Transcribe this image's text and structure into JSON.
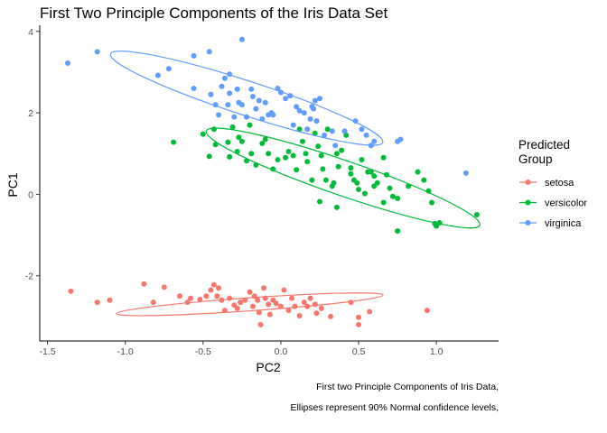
{
  "chart_data": {
    "type": "scatter",
    "title": "First Two Principle Components of the Iris Data Set",
    "xlabel": "PC2",
    "ylabel": "PC1",
    "xlim": [
      -1.55,
      1.4
    ],
    "ylim": [
      -3.6,
      4.15
    ],
    "x_ticks": [
      -1.5,
      -1.0,
      -0.5,
      0.0,
      0.5,
      1.0
    ],
    "x_tick_labels": [
      "-1.5",
      "-1.0",
      "-0.5",
      "0.0",
      "0.5",
      "1.0"
    ],
    "y_ticks": [
      -2,
      0,
      2,
      4
    ],
    "y_tick_labels": [
      "-2",
      "0",
      "2",
      "4"
    ],
    "grid": false,
    "legend": {
      "title": "Predicted\nGroup",
      "position": "right"
    },
    "captions": [
      "First two Principle Components of Iris Data,",
      "Ellipses represent 90% Normal confidence levels,"
    ],
    "series": [
      {
        "name": "setosa",
        "color": "#F8766D",
        "points": [
          [
            -1.35,
            -2.38
          ],
          [
            -1.18,
            -2.65
          ],
          [
            -1.1,
            -2.6
          ],
          [
            -0.88,
            -2.2
          ],
          [
            -0.82,
            -2.65
          ],
          [
            -0.75,
            -2.28
          ],
          [
            -0.65,
            -2.5
          ],
          [
            -0.6,
            -2.65
          ],
          [
            -0.58,
            -2.55
          ],
          [
            -0.52,
            -2.58
          ],
          [
            -0.48,
            -2.5
          ],
          [
            -0.45,
            -2.35
          ],
          [
            -0.43,
            -2.22
          ],
          [
            -0.41,
            -2.5
          ],
          [
            -0.4,
            -2.3
          ],
          [
            -0.38,
            -2.6
          ],
          [
            -0.36,
            -2.85
          ],
          [
            -0.33,
            -2.55
          ],
          [
            -0.3,
            -2.72
          ],
          [
            -0.28,
            -2.8
          ],
          [
            -0.26,
            -2.65
          ],
          [
            -0.23,
            -2.6
          ],
          [
            -0.2,
            -2.4
          ],
          [
            -0.18,
            -2.75
          ],
          [
            -0.17,
            -2.5
          ],
          [
            -0.15,
            -2.6
          ],
          [
            -0.14,
            -2.9
          ],
          [
            -0.13,
            -3.2
          ],
          [
            -0.11,
            -2.3
          ],
          [
            -0.1,
            -2.55
          ],
          [
            -0.08,
            -2.7
          ],
          [
            -0.07,
            -2.95
          ],
          [
            -0.05,
            -2.6
          ],
          [
            -0.03,
            -2.68
          ],
          [
            0.0,
            -2.75
          ],
          [
            0.02,
            -2.35
          ],
          [
            0.05,
            -2.85
          ],
          [
            0.07,
            -2.55
          ],
          [
            0.09,
            -2.75
          ],
          [
            0.12,
            -2.98
          ],
          [
            0.15,
            -2.65
          ],
          [
            0.17,
            -2.75
          ],
          [
            0.19,
            -2.55
          ],
          [
            0.22,
            -2.7
          ],
          [
            0.23,
            -2.92
          ],
          [
            0.26,
            -2.8
          ],
          [
            0.32,
            -3.0
          ],
          [
            0.45,
            -2.65
          ],
          [
            0.5,
            -3.2
          ],
          [
            0.5,
            -3.02
          ],
          [
            0.57,
            -2.88
          ],
          [
            0.94,
            -2.85
          ]
        ],
        "ellipse": {
          "center": [
            -0.2,
            -2.7
          ],
          "angle_deg": -4,
          "rx": 0.86,
          "ry": 0.16
        }
      },
      {
        "name": "versicolor",
        "color": "#00BA38",
        "points": [
          [
            -0.69,
            1.28
          ],
          [
            -0.5,
            1.48
          ],
          [
            -0.46,
            0.93
          ],
          [
            -0.43,
            1.6
          ],
          [
            -0.42,
            1.22
          ],
          [
            -0.34,
            1.28
          ],
          [
            -0.33,
            0.92
          ],
          [
            -0.31,
            1.65
          ],
          [
            -0.28,
            1.05
          ],
          [
            -0.27,
            1.4
          ],
          [
            -0.25,
            1.3
          ],
          [
            -0.22,
            0.82
          ],
          [
            -0.2,
            1.7
          ],
          [
            -0.19,
            1.0
          ],
          [
            -0.16,
            0.72
          ],
          [
            -0.12,
            1.25
          ],
          [
            -0.08,
            1.0
          ],
          [
            -0.05,
            0.62
          ],
          [
            -0.02,
            0.85
          ],
          [
            0.03,
            0.9
          ],
          [
            0.05,
            1.05
          ],
          [
            0.1,
            0.6
          ],
          [
            0.12,
            1.6
          ],
          [
            0.14,
            1.3
          ],
          [
            0.17,
            0.8
          ],
          [
            0.2,
            0.35
          ],
          [
            0.22,
            1.5
          ],
          [
            0.24,
            1.18
          ],
          [
            0.26,
            0.95
          ],
          [
            0.27,
            0.62
          ],
          [
            0.29,
            0.35
          ],
          [
            0.3,
            1.6
          ],
          [
            0.33,
            0.2
          ],
          [
            0.34,
            0.28
          ],
          [
            0.36,
            1.0
          ],
          [
            0.37,
            0.68
          ],
          [
            0.39,
            1.08
          ],
          [
            0.42,
            1.45
          ],
          [
            0.45,
            0.65
          ],
          [
            0.47,
            0.35
          ],
          [
            0.49,
            0.28
          ],
          [
            0.5,
            0.12
          ],
          [
            0.52,
            0.85
          ],
          [
            0.54,
            0.02
          ],
          [
            0.56,
            0.55
          ],
          [
            0.58,
            0.55
          ],
          [
            0.6,
            0.45
          ],
          [
            0.62,
            0.28
          ],
          [
            0.66,
            0.9
          ],
          [
            0.68,
            0.48
          ],
          [
            0.7,
            0.15
          ],
          [
            0.72,
            -0.05
          ],
          [
            0.75,
            -0.1
          ],
          [
            0.82,
            0.2
          ],
          [
            0.88,
            0.55
          ],
          [
            0.92,
            0.35
          ],
          [
            0.95,
            0.08
          ],
          [
            0.97,
            -0.2
          ],
          [
            0.99,
            -0.72
          ],
          [
            1.0,
            -0.78
          ],
          [
            1.02,
            -0.7
          ],
          [
            1.26,
            -0.5
          ],
          [
            0.75,
            -0.9
          ],
          [
            0.66,
            -0.2
          ],
          [
            0.6,
            0.2
          ],
          [
            0.25,
            -0.18
          ],
          [
            0.36,
            -0.32
          ],
          [
            0.45,
            0.5
          ],
          [
            0.08,
            0.95
          ],
          [
            -0.1,
            1.35
          ],
          [
            0.16,
            1.0
          ]
        ],
        "ellipse": {
          "center": [
            0.4,
            0.4
          ],
          "angle_deg": 19,
          "rx": 0.93,
          "ry": 0.43
        }
      },
      {
        "name": "virginica",
        "color": "#619CFF",
        "points": [
          [
            -1.37,
            3.22
          ],
          [
            -1.18,
            3.5
          ],
          [
            -0.79,
            2.92
          ],
          [
            -0.72,
            3.08
          ],
          [
            -0.56,
            3.4
          ],
          [
            -0.56,
            2.6
          ],
          [
            -0.46,
            3.5
          ],
          [
            -0.45,
            2.45
          ],
          [
            -0.42,
            2.2
          ],
          [
            -0.4,
            1.95
          ],
          [
            -0.38,
            2.65
          ],
          [
            -0.36,
            2.85
          ],
          [
            -0.34,
            2.2
          ],
          [
            -0.33,
            2.48
          ],
          [
            -0.33,
            2.95
          ],
          [
            -0.3,
            1.9
          ],
          [
            -0.28,
            2.58
          ],
          [
            -0.27,
            2.25
          ],
          [
            -0.25,
            2.2
          ],
          [
            -0.25,
            3.8
          ],
          [
            -0.22,
            1.9
          ],
          [
            -0.19,
            2.58
          ],
          [
            -0.18,
            2.4
          ],
          [
            -0.16,
            2.1
          ],
          [
            -0.14,
            2.3
          ],
          [
            -0.12,
            1.85
          ],
          [
            -0.1,
            2.25
          ],
          [
            -0.08,
            1.95
          ],
          [
            -0.06,
            2.0
          ],
          [
            -0.05,
            1.95
          ],
          [
            -0.02,
            2.6
          ],
          [
            0.0,
            2.5
          ],
          [
            0.03,
            2.35
          ],
          [
            0.06,
            2.42
          ],
          [
            0.08,
            1.7
          ],
          [
            0.1,
            2.15
          ],
          [
            0.12,
            2.05
          ],
          [
            0.15,
            2.0
          ],
          [
            0.17,
            1.6
          ],
          [
            0.19,
            1.85
          ],
          [
            0.2,
            2.15
          ],
          [
            0.21,
            2.1
          ],
          [
            0.22,
            2.3
          ],
          [
            0.23,
            1.8
          ],
          [
            0.25,
            2.35
          ],
          [
            0.28,
            1.45
          ],
          [
            0.33,
            1.55
          ],
          [
            0.35,
            1.2
          ],
          [
            0.41,
            1.55
          ],
          [
            0.48,
            1.8
          ],
          [
            0.52,
            1.6
          ],
          [
            0.55,
            1.45
          ],
          [
            0.58,
            1.2
          ],
          [
            0.6,
            1.3
          ],
          [
            0.75,
            1.3
          ],
          [
            0.77,
            1.35
          ],
          [
            1.19,
            0.52
          ]
        ],
        "ellipse": {
          "center": [
            -0.22,
            2.36
          ],
          "angle_deg": 18,
          "rx": 0.92,
          "ry": 0.42
        }
      }
    ]
  }
}
